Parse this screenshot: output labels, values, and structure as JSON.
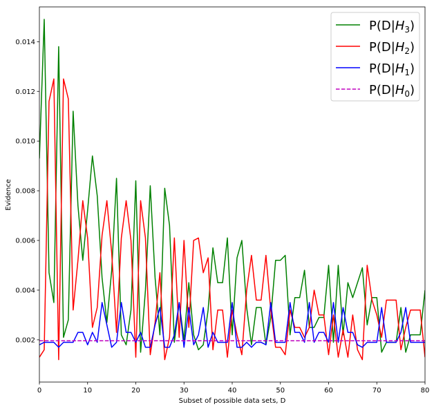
{
  "chart_data": {
    "type": "line",
    "title": "",
    "xlabel": "Subset of possible data sets, D",
    "ylabel": "Evidence",
    "xlim": [
      0,
      80
    ],
    "ylim": [
      0.0003,
      0.0154
    ],
    "xticks": [
      0,
      10,
      20,
      30,
      40,
      50,
      60,
      70,
      80
    ],
    "yticks": [
      0.002,
      0.004,
      0.006,
      0.008,
      0.01,
      0.012,
      0.014
    ],
    "ytick_labels": [
      "0.002",
      "0.004",
      "0.006",
      "0.008",
      "0.010",
      "0.012",
      "0.014"
    ],
    "grid": false,
    "legend_position": "top-right",
    "series": [
      {
        "key": "h3",
        "legend_base": "P(D|",
        "legend_var": "H",
        "legend_sub": "3",
        "legend_end": ")",
        "color": "#008000",
        "dash": "solid",
        "values": [
          0.0093,
          0.0149,
          0.0047,
          0.0035,
          0.0138,
          0.0021,
          0.0028,
          0.0112,
          0.0074,
          0.0052,
          0.0072,
          0.0094,
          0.0078,
          0.0045,
          0.0027,
          0.0048,
          0.0085,
          0.0022,
          0.0018,
          0.0032,
          0.0084,
          0.0015,
          0.004,
          0.0082,
          0.0045,
          0.0022,
          0.0081,
          0.0066,
          0.0019,
          0.0035,
          0.002,
          0.0043,
          0.0022,
          0.0016,
          0.0018,
          0.0032,
          0.0057,
          0.0043,
          0.0043,
          0.0061,
          0.0022,
          0.0053,
          0.006,
          0.0033,
          0.0018,
          0.0033,
          0.0033,
          0.0018,
          0.0029,
          0.0052,
          0.0052,
          0.0054,
          0.0022,
          0.0037,
          0.0037,
          0.0048,
          0.0025,
          0.0025,
          0.0029,
          0.0029,
          0.005,
          0.0019,
          0.005,
          0.0022,
          0.0043,
          0.0037,
          0.0043,
          0.0049,
          0.0026,
          0.0037,
          0.0037,
          0.0015,
          0.0019,
          0.0019,
          0.0019,
          0.0033,
          0.0015,
          0.0022,
          0.0022,
          0.0022,
          0.004
        ]
      },
      {
        "key": "h2",
        "legend_base": "P(D|",
        "legend_var": "H",
        "legend_sub": "2",
        "legend_end": ")",
        "color": "#ff0000",
        "dash": "solid",
        "values": [
          0.0013,
          0.0016,
          0.0116,
          0.0125,
          0.0012,
          0.0125,
          0.0117,
          0.0032,
          0.0052,
          0.0076,
          0.0061,
          0.0025,
          0.0033,
          0.0062,
          0.0076,
          0.0055,
          0.0023,
          0.0061,
          0.0076,
          0.006,
          0.0013,
          0.0076,
          0.0061,
          0.0014,
          0.0027,
          0.0047,
          0.0012,
          0.0021,
          0.0061,
          0.0021,
          0.006,
          0.0025,
          0.006,
          0.0061,
          0.0047,
          0.0053,
          0.0016,
          0.0032,
          0.0032,
          0.0013,
          0.0032,
          0.0022,
          0.0014,
          0.004,
          0.0054,
          0.0036,
          0.0036,
          0.0054,
          0.0032,
          0.0017,
          0.0017,
          0.0014,
          0.0032,
          0.0025,
          0.0025,
          0.0021,
          0.0025,
          0.004,
          0.003,
          0.003,
          0.0014,
          0.003,
          0.0013,
          0.0024,
          0.0013,
          0.003,
          0.0016,
          0.0012,
          0.005,
          0.0036,
          0.003,
          0.0021,
          0.0036,
          0.0036,
          0.0036,
          0.0016,
          0.0025,
          0.0032,
          0.0032,
          0.0032,
          0.0013
        ]
      },
      {
        "key": "h1",
        "legend_base": "P(D|",
        "legend_var": "H",
        "legend_sub": "1",
        "legend_end": ")",
        "color": "#0000ff",
        "dash": "solid",
        "values": [
          0.0018,
          0.0019,
          0.0019,
          0.0019,
          0.0017,
          0.0019,
          0.0019,
          0.0019,
          0.0023,
          0.0023,
          0.0018,
          0.0023,
          0.0019,
          0.0035,
          0.0026,
          0.0017,
          0.0019,
          0.0035,
          0.0023,
          0.0023,
          0.0019,
          0.0023,
          0.0017,
          0.0017,
          0.0026,
          0.0033,
          0.0017,
          0.0017,
          0.0022,
          0.0035,
          0.0017,
          0.0033,
          0.0018,
          0.0022,
          0.0033,
          0.0017,
          0.0023,
          0.0019,
          0.0019,
          0.0019,
          0.0035,
          0.0017,
          0.0017,
          0.0019,
          0.0017,
          0.0019,
          0.0019,
          0.0018,
          0.0035,
          0.0019,
          0.0019,
          0.0019,
          0.0035,
          0.0023,
          0.0023,
          0.0019,
          0.0035,
          0.0019,
          0.0023,
          0.0023,
          0.0019,
          0.0035,
          0.0019,
          0.0033,
          0.0023,
          0.0023,
          0.0018,
          0.0017,
          0.0019,
          0.0019,
          0.0019,
          0.0033,
          0.0019,
          0.0019,
          0.0019,
          0.0023,
          0.0033,
          0.0019,
          0.0019,
          0.0019,
          0.0019
        ]
      },
      {
        "key": "h0",
        "legend_base": "P(D|",
        "legend_var": "H",
        "legend_sub": "0",
        "legend_end": ")",
        "color": "#bf00bf",
        "dash": "dashed",
        "values": [
          0.00196,
          0.00196,
          0.00196,
          0.00196,
          0.00196,
          0.00196,
          0.00196,
          0.00196,
          0.00196,
          0.00196,
          0.00196,
          0.00196,
          0.00196,
          0.00196,
          0.00196,
          0.00196,
          0.00196,
          0.00196,
          0.00196,
          0.00196,
          0.00196,
          0.00196,
          0.00196,
          0.00196,
          0.00196,
          0.00196,
          0.00196,
          0.00196,
          0.00196,
          0.00196,
          0.00196,
          0.00196,
          0.00196,
          0.00196,
          0.00196,
          0.00196,
          0.00196,
          0.00196,
          0.00196,
          0.00196,
          0.00196,
          0.00196,
          0.00196,
          0.00196,
          0.00196,
          0.00196,
          0.00196,
          0.00196,
          0.00196,
          0.00196,
          0.00196,
          0.00196,
          0.00196,
          0.00196,
          0.00196,
          0.00196,
          0.00196,
          0.00196,
          0.00196,
          0.00196,
          0.00196,
          0.00196,
          0.00196,
          0.00196,
          0.00196,
          0.00196,
          0.00196,
          0.00196,
          0.00196,
          0.00196,
          0.00196,
          0.00196,
          0.00196,
          0.00196,
          0.00196,
          0.00196,
          0.00196,
          0.00196,
          0.00196,
          0.00196,
          0.00196
        ]
      }
    ]
  }
}
